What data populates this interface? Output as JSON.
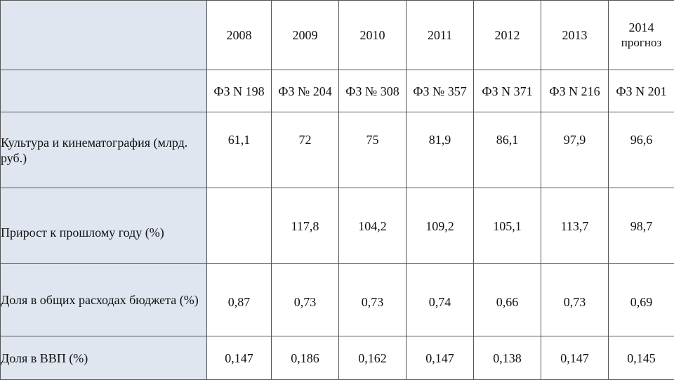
{
  "header": {
    "years": [
      {
        "year": "2008",
        "note": ""
      },
      {
        "year": "2009",
        "note": ""
      },
      {
        "year": "2010",
        "note": ""
      },
      {
        "year": "2011",
        "note": ""
      },
      {
        "year": "2012",
        "note": ""
      },
      {
        "year": "2013",
        "note": ""
      },
      {
        "year": "2014",
        "note": "прогноз"
      }
    ],
    "laws": [
      "ФЗ N 198",
      "ФЗ № 204",
      "ФЗ № 308",
      "ФЗ № 357",
      "ФЗ N 371",
      "ФЗ N 216",
      "ФЗ N 201"
    ]
  },
  "rows": [
    {
      "label": "Культура и кинематография (млрд. руб.)",
      "values": [
        "61,1",
        "72",
        "75",
        "81,9",
        "86,1",
        "97,9",
        "96,6"
      ]
    },
    {
      "label": "Прирост к прошлому году (%)",
      "values": [
        "",
        "117,8",
        "104,2",
        "109,2",
        "105,1",
        "113,7",
        "98,7"
      ]
    },
    {
      "label": "Доля в общих расходах бюджета (%)",
      "values": [
        "0,87",
        "0,73",
        "0,73",
        "0,74",
        "0,66",
        "0,73",
        "0,69"
      ]
    },
    {
      "label": "Доля в ВВП (%)",
      "values": [
        "0,147",
        "0,186",
        "0,162",
        "0,147",
        "0,138",
        "0,147",
        "0,145"
      ]
    }
  ],
  "colors": {
    "label_column_bg": "#dfe6ef",
    "border": "#555555"
  }
}
